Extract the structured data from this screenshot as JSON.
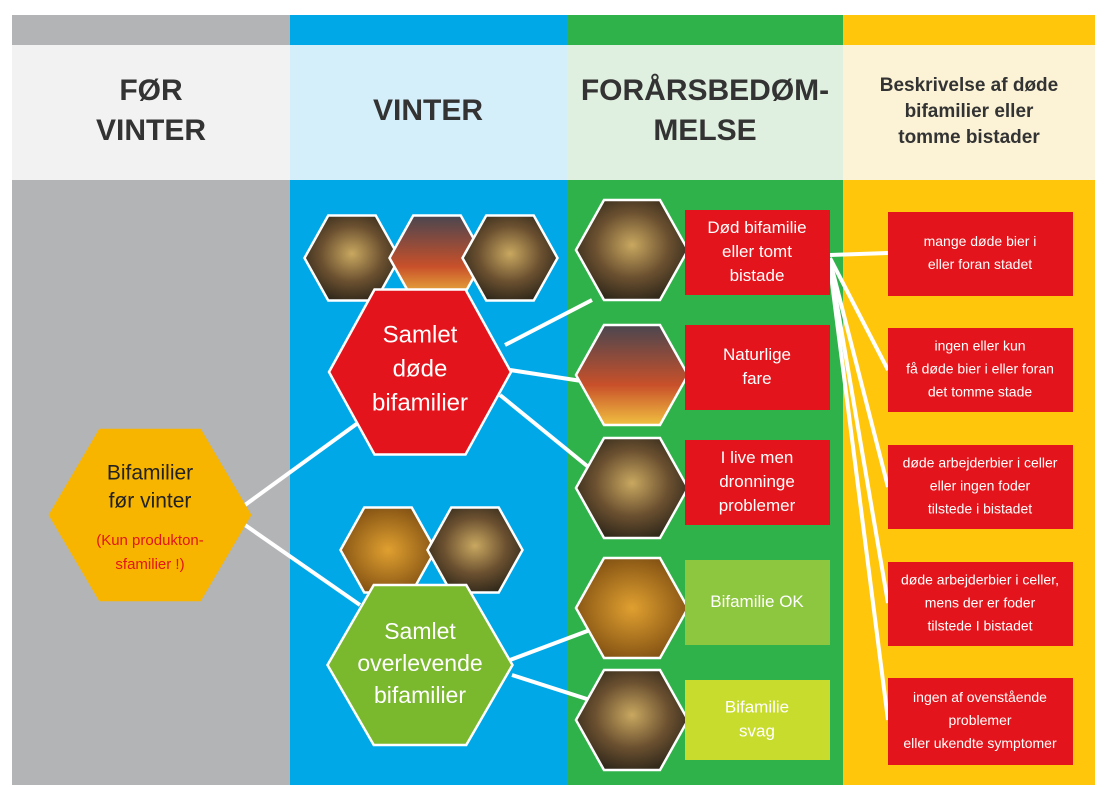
{
  "columns": [
    {
      "title": [
        "FØR",
        "VINTER"
      ]
    },
    {
      "title": [
        "VINTER"
      ]
    },
    {
      "title": [
        "FORÅRSBEDØM-",
        "MELSE"
      ]
    },
    {
      "title": [
        "Beskrivelse af døde",
        "bifamilier eller",
        "tomme bistader"
      ]
    }
  ],
  "nodes": {
    "start": {
      "label": [
        "Bifamilier",
        "før vinter"
      ],
      "note": [
        "(Kun produkton-",
        "sfamilier !)"
      ]
    },
    "dead": {
      "label": [
        "Samlet",
        "døde",
        "bifamilier"
      ]
    },
    "survived": {
      "label": [
        "Samlet",
        "overlevende",
        "bifamilier"
      ]
    }
  },
  "outcomes": [
    {
      "label": [
        "Død bifamilie",
        "eller tomt",
        "bistade"
      ]
    },
    {
      "label": [
        "Naturlige",
        "fare"
      ]
    },
    {
      "label": [
        "I live men",
        "dronninge",
        "problemer"
      ]
    },
    {
      "label": [
        "Bifamilie OK"
      ]
    },
    {
      "label": [
        "Bifamilie",
        "svag"
      ]
    }
  ],
  "descriptions": [
    {
      "label": [
        "mange døde bier i",
        "eller foran stadet"
      ]
    },
    {
      "label": [
        "ingen eller kun",
        "få døde bier i eller foran",
        "det tomme stade"
      ]
    },
    {
      "label": [
        "døde arbejderbier i celler",
        "eller ingen foder",
        "tilstede i bistadet"
      ]
    },
    {
      "label": [
        "døde arbejderbier i celler,",
        "mens der er foder",
        "tilstede I bistadet"
      ]
    },
    {
      "label": [
        "ingen af ovenstående",
        "problemer",
        "eller ukendte symptomer"
      ]
    }
  ]
}
